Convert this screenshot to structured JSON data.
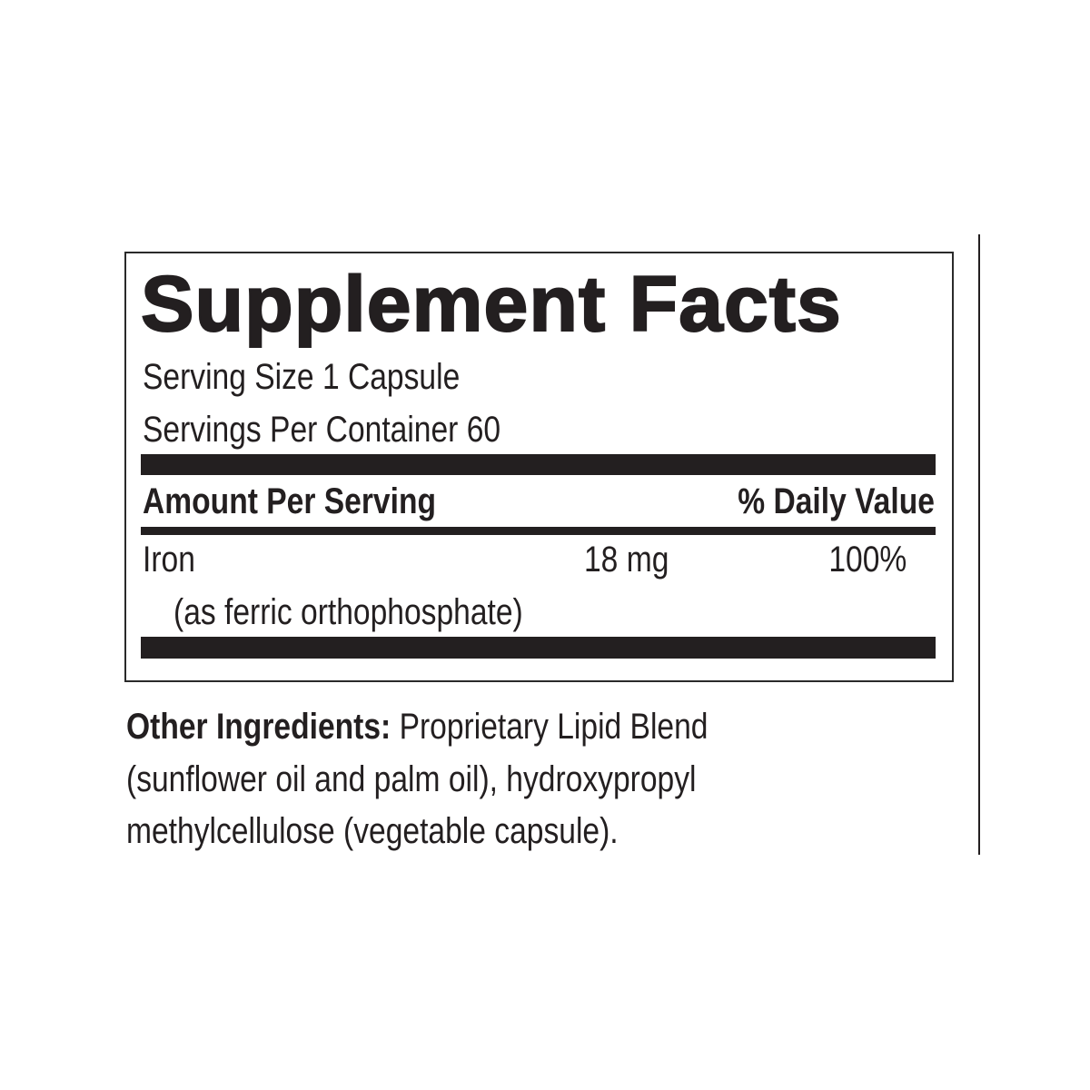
{
  "label": {
    "title": "Supplement Facts",
    "serving_size": "Serving Size 1 Capsule",
    "servings_per_container": "Servings Per Container 60",
    "header_amount": "Amount Per Serving",
    "header_dv": "% Daily Value",
    "nutrients": [
      {
        "name": "Iron",
        "source": "(as ferric orthophosphate)",
        "amount": "18 mg",
        "dv": "100%"
      }
    ]
  },
  "other_ingredients": {
    "heading": "Other Ingredients:",
    "lines": [
      "Proprietary Lipid Blend",
      "(sunflower oil and palm oil), hydroxypropyl",
      "methylcellulose (vegetable capsule)."
    ]
  }
}
